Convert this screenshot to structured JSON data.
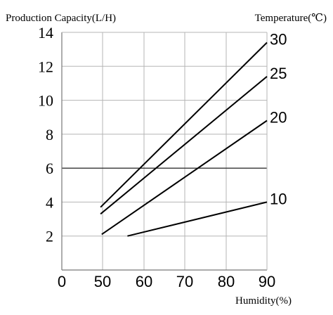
{
  "chart_data": {
    "type": "line",
    "ylabel": "Production Capacity(L/H)",
    "xlabel": "Humidity(%)",
    "legend_title": "Temperature(℃)",
    "xlim": [
      0,
      90
    ],
    "ylim": [
      0,
      14
    ],
    "x_ticks": [
      "0",
      "50",
      "60",
      "70",
      "80",
      "90"
    ],
    "y_ticks": [
      "2",
      "4",
      "6",
      "8",
      "10",
      "12",
      "14"
    ],
    "grid": true,
    "reference_line_y": 6,
    "series": [
      {
        "name": "30",
        "points": [
          [
            47.5,
            3.7
          ],
          [
            90,
            13.4
          ]
        ]
      },
      {
        "name": "25",
        "points": [
          [
            47.5,
            3.3
          ],
          [
            90,
            11.4
          ]
        ]
      },
      {
        "name": "20",
        "points": [
          [
            49,
            2.1
          ],
          [
            90,
            8.8
          ]
        ]
      },
      {
        "name": "10",
        "points": [
          [
            56,
            2.0
          ],
          [
            90,
            4.0
          ]
        ]
      }
    ]
  }
}
